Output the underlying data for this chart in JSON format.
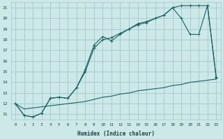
{
  "xlabel": "Humidex (Indice chaleur)",
  "bg_color": "#cce8e8",
  "grid_color": "#a0c8c8",
  "line_color": "#1a6060",
  "xlim": [
    -0.5,
    23.5
  ],
  "ylim": [
    10.5,
    21.5
  ],
  "xticks": [
    0,
    1,
    2,
    3,
    4,
    5,
    6,
    7,
    8,
    9,
    10,
    11,
    12,
    13,
    14,
    15,
    16,
    17,
    18,
    19,
    20,
    21,
    22,
    23
  ],
  "yticks": [
    11,
    12,
    13,
    14,
    15,
    16,
    17,
    18,
    19,
    20,
    21
  ],
  "line1_x": [
    0,
    1,
    2,
    3,
    4,
    5,
    6,
    7,
    8,
    9,
    10,
    11,
    12,
    13,
    14,
    15,
    16,
    17,
    18,
    19,
    20,
    21,
    22,
    23
  ],
  "line1_y": [
    12.0,
    10.9,
    10.75,
    11.1,
    12.5,
    12.6,
    12.5,
    13.5,
    15.2,
    17.5,
    18.3,
    17.9,
    18.5,
    19.0,
    19.5,
    19.7,
    20.0,
    20.3,
    21.0,
    21.2,
    21.2,
    21.2,
    21.2,
    14.5
  ],
  "line2_x": [
    0,
    1,
    2,
    3,
    4,
    5,
    6,
    7,
    8,
    9,
    10,
    11,
    12,
    13,
    14,
    15,
    16,
    17,
    18,
    19,
    20,
    21,
    22,
    23
  ],
  "line2_y": [
    12.0,
    10.9,
    10.75,
    11.1,
    12.5,
    12.6,
    12.5,
    13.5,
    15.0,
    17.2,
    18.0,
    18.2,
    18.6,
    19.0,
    19.4,
    19.6,
    20.0,
    20.3,
    21.0,
    20.0,
    18.5,
    18.5,
    21.2,
    14.4
  ],
  "line3_x": [
    0,
    1,
    2,
    3,
    4,
    5,
    6,
    7,
    8,
    9,
    10,
    11,
    12,
    13,
    14,
    15,
    16,
    17,
    18,
    19,
    20,
    21,
    22,
    23
  ],
  "line3_y": [
    12.0,
    11.5,
    11.6,
    11.7,
    11.8,
    11.9,
    12.0,
    12.1,
    12.2,
    12.4,
    12.6,
    12.7,
    12.9,
    13.0,
    13.2,
    13.3,
    13.4,
    13.5,
    13.7,
    13.8,
    14.0,
    14.1,
    14.2,
    14.3
  ]
}
